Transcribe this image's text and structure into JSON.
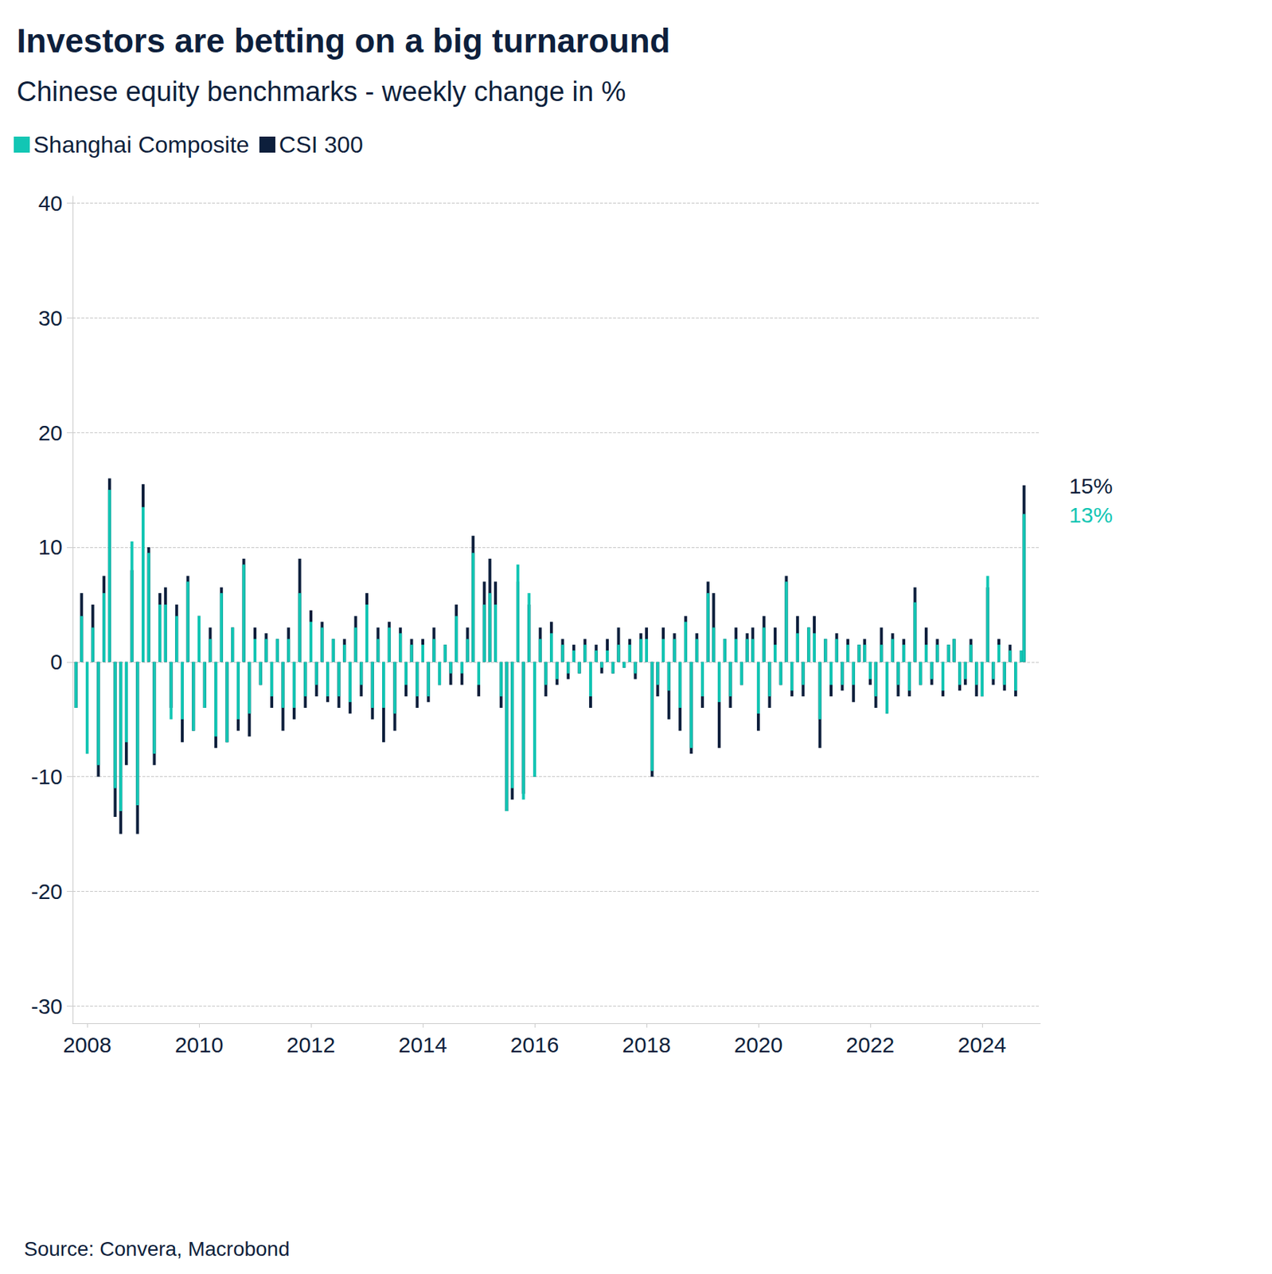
{
  "chart_data": {
    "type": "bar",
    "title": "Investors are betting on a big turnaround",
    "subtitle": "Chinese equity benchmarks - weekly change in %",
    "source": "Source: Convera, Macrobond",
    "stacked": true,
    "grid": true,
    "legend": "top-left",
    "xlim": [
      2007.74,
      2025.04
    ],
    "xticks": [
      2008,
      2010,
      2012,
      2014,
      2016,
      2018,
      2020,
      2022,
      2024
    ],
    "ylim": [
      -31.5,
      40.6
    ],
    "yticks": [
      -30,
      -20,
      -10,
      0,
      10,
      20,
      30,
      40
    ],
    "x": [
      2007.8,
      2007.9,
      2008.0,
      2008.1,
      2008.2,
      2008.3,
      2008.4,
      2008.5,
      2008.6,
      2008.7,
      2008.8,
      2008.9,
      2009.0,
      2009.1,
      2009.2,
      2009.3,
      2009.4,
      2009.5,
      2009.6,
      2009.7,
      2009.8,
      2009.9,
      2010.0,
      2010.1,
      2010.2,
      2010.3,
      2010.4,
      2010.5,
      2010.6,
      2010.7,
      2010.8,
      2010.9,
      2011.0,
      2011.1,
      2011.2,
      2011.3,
      2011.4,
      2011.5,
      2011.6,
      2011.7,
      2011.8,
      2011.9,
      2012.0,
      2012.1,
      2012.2,
      2012.3,
      2012.4,
      2012.5,
      2012.6,
      2012.7,
      2012.8,
      2012.9,
      2013.0,
      2013.1,
      2013.2,
      2013.3,
      2013.4,
      2013.5,
      2013.6,
      2013.7,
      2013.8,
      2013.9,
      2014.0,
      2014.1,
      2014.2,
      2014.3,
      2014.4,
      2014.5,
      2014.6,
      2014.7,
      2014.8,
      2014.9,
      2015.0,
      2015.1,
      2015.2,
      2015.3,
      2015.4,
      2015.5,
      2015.6,
      2015.7,
      2015.8,
      2015.9,
      2016.0,
      2016.1,
      2016.2,
      2016.3,
      2016.4,
      2016.5,
      2016.6,
      2016.7,
      2016.8,
      2016.9,
      2017.0,
      2017.1,
      2017.2,
      2017.3,
      2017.4,
      2017.5,
      2017.6,
      2017.7,
      2017.8,
      2017.9,
      2018.0,
      2018.1,
      2018.2,
      2018.3,
      2018.4,
      2018.5,
      2018.6,
      2018.7,
      2018.8,
      2018.9,
      2019.0,
      2019.1,
      2019.2,
      2019.3,
      2019.4,
      2019.5,
      2019.6,
      2019.7,
      2019.8,
      2019.9,
      2020.0,
      2020.1,
      2020.2,
      2020.3,
      2020.4,
      2020.5,
      2020.6,
      2020.7,
      2020.8,
      2020.9,
      2021.0,
      2021.1,
      2021.2,
      2021.3,
      2021.4,
      2021.5,
      2021.6,
      2021.7,
      2021.8,
      2021.9,
      2022.0,
      2022.1,
      2022.2,
      2022.3,
      2022.4,
      2022.5,
      2022.6,
      2022.7,
      2022.8,
      2022.9,
      2023.0,
      2023.1,
      2023.2,
      2023.3,
      2023.4,
      2023.5,
      2023.6,
      2023.7,
      2023.8,
      2023.9,
      2024.0,
      2024.1,
      2024.2,
      2024.3,
      2024.4,
      2024.5,
      2024.6,
      2024.7,
      2024.75
    ],
    "series": [
      {
        "name": "Shanghai Composite",
        "color": "#12c6b4",
        "values": [
          -4,
          4,
          -8,
          3,
          -9,
          6,
          15,
          -11,
          -13,
          -7,
          10.5,
          -12.5,
          13.5,
          9.5,
          -8,
          5,
          5,
          -5,
          4,
          -5,
          7,
          -6,
          4,
          -4,
          2,
          -6.5,
          6,
          -7,
          3,
          -5,
          8.5,
          -4.5,
          2,
          -2,
          2,
          -3,
          2,
          -4,
          2,
          -4,
          6,
          -3,
          3.5,
          -2,
          3,
          -3,
          2,
          -3,
          1.5,
          -3.5,
          3,
          -2,
          5,
          -4,
          2,
          -4,
          3,
          -4.5,
          2.5,
          -2,
          1.5,
          -3,
          1.5,
          -3,
          2,
          -2,
          1.5,
          -1,
          4,
          -1,
          2,
          9.5,
          -2,
          5,
          6,
          5,
          -3,
          -13,
          -11,
          8.5,
          -12,
          6,
          -10,
          2,
          -2,
          2.5,
          -1.5,
          1.5,
          -1,
          1,
          -1,
          1.5,
          -3,
          1,
          -0.5,
          1,
          -1,
          1.5,
          -0.5,
          1.5,
          -1,
          2,
          2,
          -9.5,
          -2,
          2,
          -2.5,
          2,
          -4,
          3.5,
          -7.5,
          2,
          -3,
          6,
          3,
          -3.5,
          2,
          -3,
          2,
          -2,
          2,
          2,
          -4.5,
          3,
          -3,
          1.5,
          -2,
          7,
          -2.5,
          2.5,
          -2,
          3,
          2.5,
          -5,
          2,
          -2,
          2,
          -2,
          1.5,
          -2,
          1.5,
          1.5,
          -1.5,
          -3,
          1.5,
          -4.5,
          2,
          -2,
          1.5,
          -2.5,
          5.2,
          -2,
          1.5,
          -1.5,
          1.5,
          -2.5,
          1.5,
          2,
          -2,
          -1.5,
          1.5,
          -2,
          -3,
          7.5,
          -1.5,
          1.5,
          -2,
          1,
          -2.5,
          1,
          12.9
        ]
      },
      {
        "name": "CSI 300",
        "color": "#0d1f3c",
        "values": [
          -4,
          6,
          -8,
          5,
          -10,
          7.5,
          16,
          -13.5,
          -15,
          -9,
          8,
          -15,
          15.5,
          10,
          -9,
          6,
          6.5,
          -4,
          5,
          -7,
          7.5,
          -6,
          4,
          -4,
          3,
          -7.5,
          6.5,
          -7,
          3,
          -6,
          9,
          -6.5,
          3,
          -2,
          2.5,
          -4,
          2,
          -6,
          3,
          -5,
          9,
          -4,
          4.5,
          -3,
          3.5,
          -3.5,
          2,
          -4,
          2,
          -4.5,
          4,
          -3,
          6,
          -5,
          3,
          -7,
          3.5,
          -6,
          3,
          -3,
          2,
          -4,
          2,
          -3.5,
          3,
          -2,
          1.5,
          -2,
          5,
          -2,
          3,
          11,
          -3,
          7,
          9,
          7,
          -4,
          -13,
          -12,
          7,
          -11.5,
          5,
          -10,
          3,
          -3,
          3.5,
          -2,
          2,
          -1.5,
          1.5,
          -1,
          2,
          -4,
          1.5,
          -1,
          2,
          -1,
          3,
          -0.5,
          2,
          -1.5,
          2.5,
          3,
          -10,
          -3,
          3,
          -5,
          2.5,
          -6,
          4,
          -8,
          2.5,
          -4,
          7,
          6,
          -7.5,
          2,
          -4,
          3,
          -2,
          2.5,
          3,
          -6,
          4,
          -4,
          3,
          -2,
          7.5,
          -3,
          4,
          -3,
          3,
          4,
          -7.5,
          2,
          -3,
          2.5,
          -2.5,
          2,
          -3.5,
          1.5,
          2,
          -2,
          -4,
          3,
          -4.5,
          2.5,
          -3,
          2,
          -3,
          6.5,
          -2,
          3,
          -2,
          2,
          -3,
          1.5,
          2,
          -2.5,
          -2,
          2,
          -3,
          -3,
          6.5,
          -2,
          2,
          -2.5,
          1.5,
          -3,
          1,
          15.4
        ]
      }
    ],
    "annotations": [
      {
        "series": "Shanghai Composite",
        "text": "13%"
      },
      {
        "series": "CSI 300",
        "text": "15%"
      }
    ]
  }
}
